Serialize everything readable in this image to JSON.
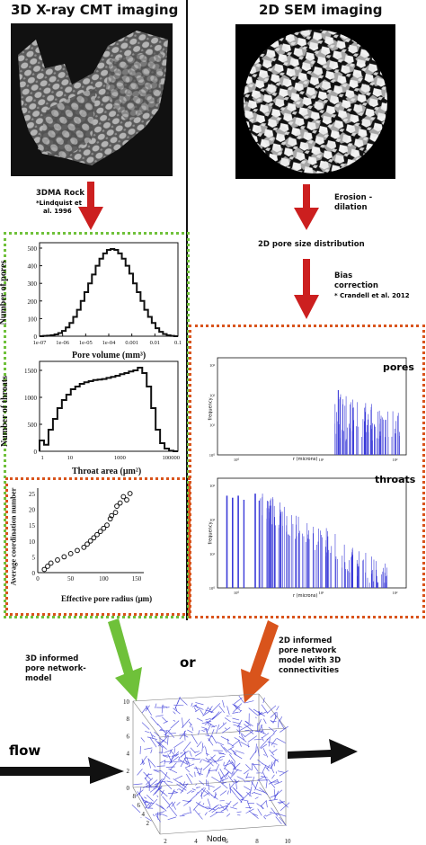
{
  "left": {
    "title": "3D X-ray CMT imaging",
    "method": "3DMA Rock",
    "citation_line1": "*Lindquist et",
    "citation_line2": "al. 1996",
    "pore_volume_chart": {
      "ylabel": "Number of pores",
      "xlabel": "Pore volume (mm³)",
      "yticks": [
        "0",
        "100",
        "200",
        "300",
        "400",
        "500"
      ],
      "xticks": [
        "1e-07",
        "1e-06",
        "1e-05",
        "1e-04",
        "0.001",
        "0.01",
        "0.1"
      ]
    },
    "throat_chart": {
      "ylabel": "Number of throats",
      "xlabel": "Throat area (μm²)",
      "yticks": [
        "0",
        "500",
        "1000",
        "1500"
      ],
      "xticks": [
        "1",
        "10",
        "1000",
        "100000"
      ]
    },
    "coord_chart": {
      "ylabel": "Average coordination number",
      "xlabel": "Effective pore radius (μm)",
      "yticks": [
        "0",
        "5",
        "10",
        "15",
        "20",
        "25"
      ],
      "xticks": [
        "0",
        "50",
        "100",
        "150"
      ]
    }
  },
  "right": {
    "title": "2D SEM imaging",
    "step1_line1": "Erosion -",
    "step1_line2": "dilation",
    "step2": "2D pore size distribution",
    "step3_line1": "Bias",
    "step3_line2": "correction",
    "citation": "* Crandell et al. 2012",
    "pores_chart": {
      "label": "pores",
      "ylabel": "frequency",
      "xlabel": "r (microns)",
      "yticks": [
        "10⁰",
        "10¹",
        "10²",
        "10³"
      ],
      "xticks": [
        "10⁰",
        "10¹",
        "10²"
      ]
    },
    "throats_chart": {
      "label": "throats",
      "ylabel": "frequency",
      "xlabel": "r (microns)",
      "yticks": [
        "10⁰",
        "10¹",
        "10²",
        "10³"
      ],
      "xticks": [
        "10⁰",
        "10¹",
        "10²"
      ]
    }
  },
  "bottom": {
    "model_left_line1": "3D informed",
    "model_left_line2": "pore network-",
    "model_left_line3": "model",
    "or": "or",
    "model_right_line1": "2D informed",
    "model_right_line2": "pore network",
    "model_right_line3": "model with 3D",
    "model_right_line4": "connectivities",
    "flow": "flow",
    "network": {
      "xlabel": "Node",
      "xticks": [
        "2",
        "4",
        "6",
        "8",
        "10"
      ],
      "yticks": [
        "2",
        "4",
        "6",
        "8"
      ],
      "zticks": [
        "0",
        "2",
        "4",
        "6",
        "8",
        "10"
      ]
    }
  },
  "colors": {
    "green": "#6fc13a",
    "orange": "#d9541c",
    "red_arrow": "#cc1f1f",
    "network_blue": "#3a3ad8"
  }
}
